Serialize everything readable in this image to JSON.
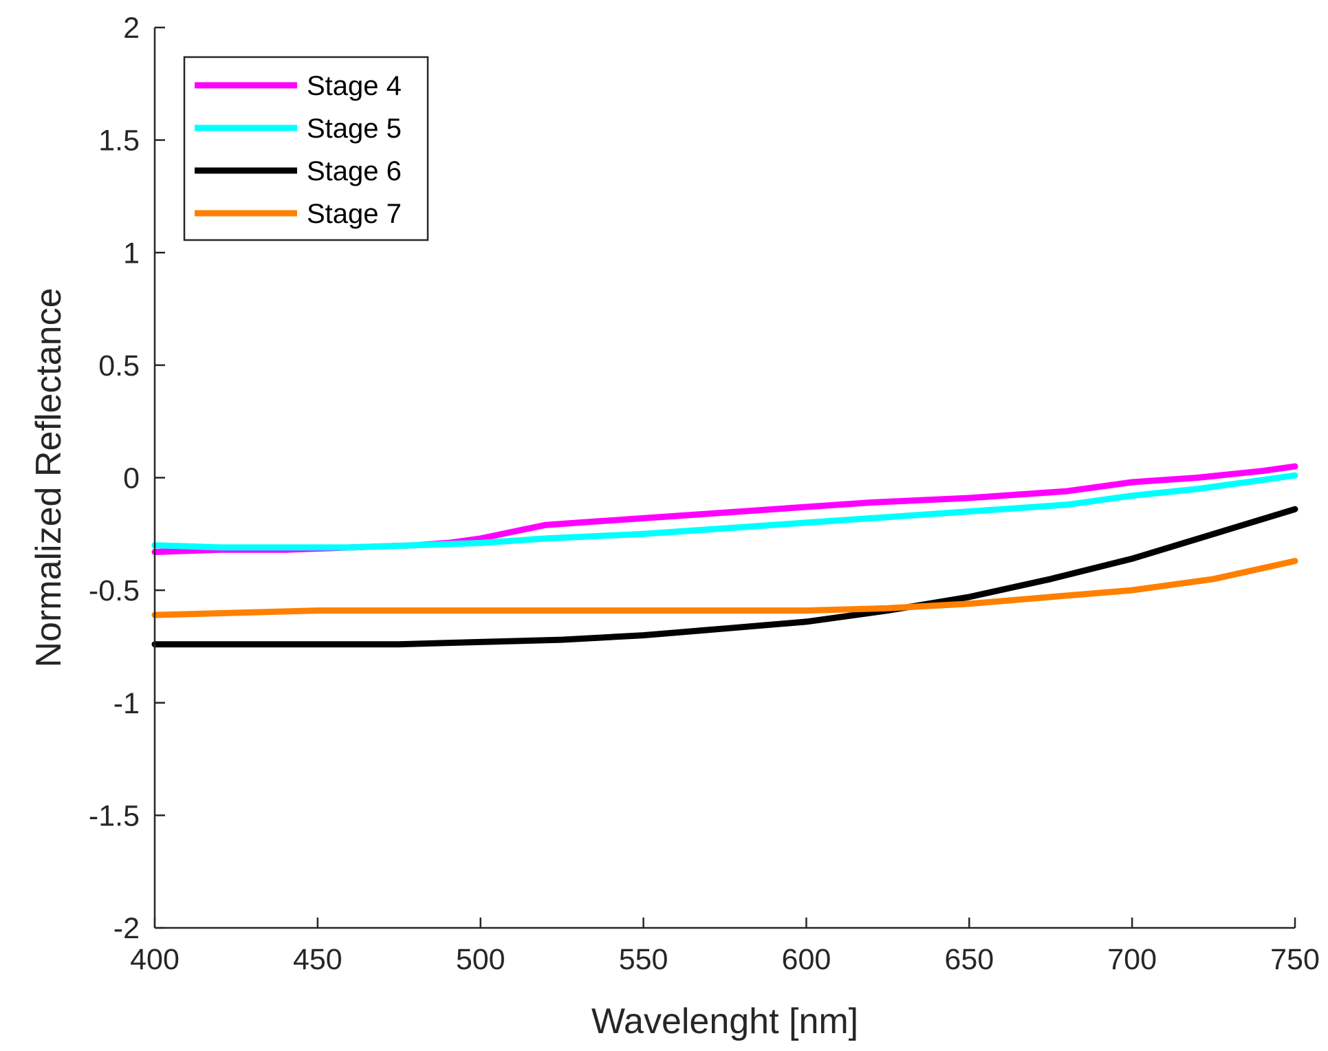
{
  "chart_data": {
    "type": "line",
    "title": "",
    "xlabel": "Wavelenght [nm]",
    "ylabel": "Normalized Reflectance",
    "xlim": [
      400,
      750
    ],
    "ylim": [
      -2,
      2
    ],
    "xticks": [
      400,
      450,
      500,
      550,
      600,
      650,
      700,
      750
    ],
    "xtick_labels": [
      "400",
      "450",
      "500",
      "550",
      "600",
      "650",
      "700",
      "750"
    ],
    "yticks": [
      -2,
      -1.5,
      -1,
      -0.5,
      0,
      0.5,
      1,
      1.5,
      2
    ],
    "ytick_labels": [
      "-2",
      "-1.5",
      "-1",
      "-0.5",
      "0",
      "0.5",
      "1",
      "1.5",
      "2"
    ],
    "grid": false,
    "legend_position": "top-left",
    "series": [
      {
        "name": "Stage 4",
        "color": "#ff00ff",
        "x": [
          400,
          420,
          440,
          460,
          480,
          490,
          500,
          510,
          520,
          530,
          550,
          570,
          600,
          620,
          650,
          680,
          690,
          700,
          720,
          740,
          750
        ],
        "y": [
          -0.33,
          -0.32,
          -0.32,
          -0.31,
          -0.3,
          -0.29,
          -0.27,
          -0.24,
          -0.21,
          -0.2,
          -0.18,
          -0.16,
          -0.13,
          -0.11,
          -0.09,
          -0.06,
          -0.04,
          -0.02,
          0.0,
          0.03,
          0.05
        ]
      },
      {
        "name": "Stage 5",
        "color": "#00ffff",
        "x": [
          400,
          420,
          440,
          460,
          480,
          500,
          520,
          550,
          580,
          600,
          620,
          650,
          680,
          700,
          720,
          740,
          750
        ],
        "y": [
          -0.3,
          -0.31,
          -0.31,
          -0.31,
          -0.3,
          -0.29,
          -0.27,
          -0.25,
          -0.22,
          -0.2,
          -0.18,
          -0.15,
          -0.12,
          -0.08,
          -0.05,
          -0.01,
          0.01
        ]
      },
      {
        "name": "Stage 6",
        "color": "#000000",
        "x": [
          400,
          425,
          450,
          475,
          500,
          525,
          550,
          575,
          600,
          625,
          650,
          675,
          700,
          725,
          750
        ],
        "y": [
          -0.74,
          -0.74,
          -0.74,
          -0.74,
          -0.73,
          -0.72,
          -0.7,
          -0.67,
          -0.64,
          -0.59,
          -0.53,
          -0.45,
          -0.36,
          -0.25,
          -0.14
        ]
      },
      {
        "name": "Stage 7",
        "color": "#ff8000",
        "x": [
          400,
          425,
          450,
          475,
          500,
          525,
          550,
          575,
          600,
          625,
          650,
          675,
          700,
          725,
          750
        ],
        "y": [
          -0.61,
          -0.6,
          -0.59,
          -0.59,
          -0.59,
          -0.59,
          -0.59,
          -0.59,
          -0.59,
          -0.58,
          -0.56,
          -0.53,
          -0.5,
          -0.45,
          -0.37
        ]
      }
    ]
  }
}
